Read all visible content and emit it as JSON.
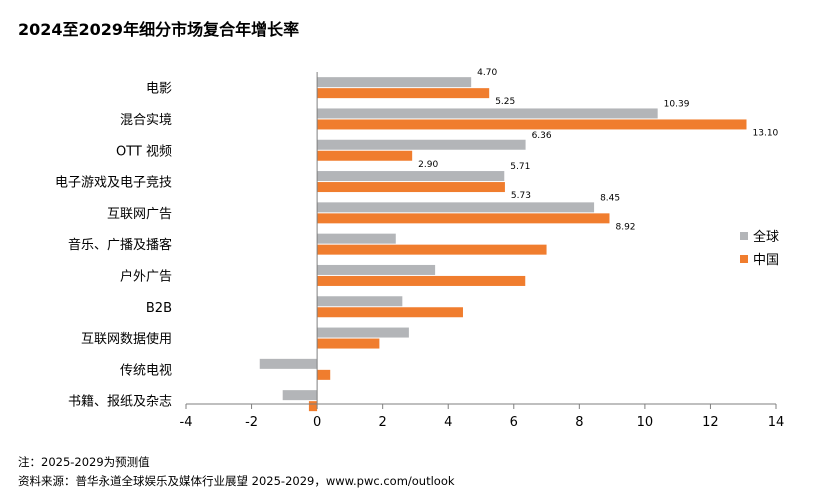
{
  "chart_data": {
    "type": "bar",
    "orientation": "horizontal",
    "title": "2024至2029年细分市场复合年增长率",
    "categories": [
      "电影",
      "混合实境",
      "OTT 视频",
      "电子游戏及电子竞技",
      "互联网广告",
      "音乐、广播及播客",
      "户外广告",
      "B2B",
      "互联网数据使用",
      "传统电视",
      "书籍、报纸及杂志"
    ],
    "series": [
      {
        "name": "全球",
        "color": "#b3b5b8",
        "values": [
          4.7,
          10.39,
          6.36,
          5.71,
          8.45,
          2.4,
          3.6,
          2.6,
          2.8,
          -1.75,
          -1.05
        ],
        "labels": [
          "4.70",
          "10.39",
          "6.36",
          "5.71",
          "8.45",
          "",
          "",
          "",
          "",
          "",
          ""
        ]
      },
      {
        "name": "中国",
        "color": "#f07d2e",
        "values": [
          5.25,
          13.1,
          2.9,
          5.73,
          8.92,
          7.0,
          6.35,
          4.45,
          1.9,
          0.4,
          -0.25
        ],
        "labels": [
          "5.25",
          "13.10",
          "2.90",
          "5.73",
          "8.92",
          "",
          "",
          "",
          "",
          "",
          ""
        ]
      }
    ],
    "xlim": [
      -4,
      14
    ],
    "xticks": [
      -4,
      -2,
      0,
      2,
      4,
      6,
      8,
      10,
      12,
      14
    ],
    "xtick_labels": [
      "-4",
      "-2",
      "0",
      "2",
      "4",
      "6",
      "8",
      "10",
      "12",
      "14"
    ],
    "legend_position": "right",
    "grid": false
  },
  "footnote": "注：2025-2029为预测值",
  "source": "资料来源：普华永道全球娱乐及媒体行业展望 2025-2029，www.pwc.com/outlook"
}
